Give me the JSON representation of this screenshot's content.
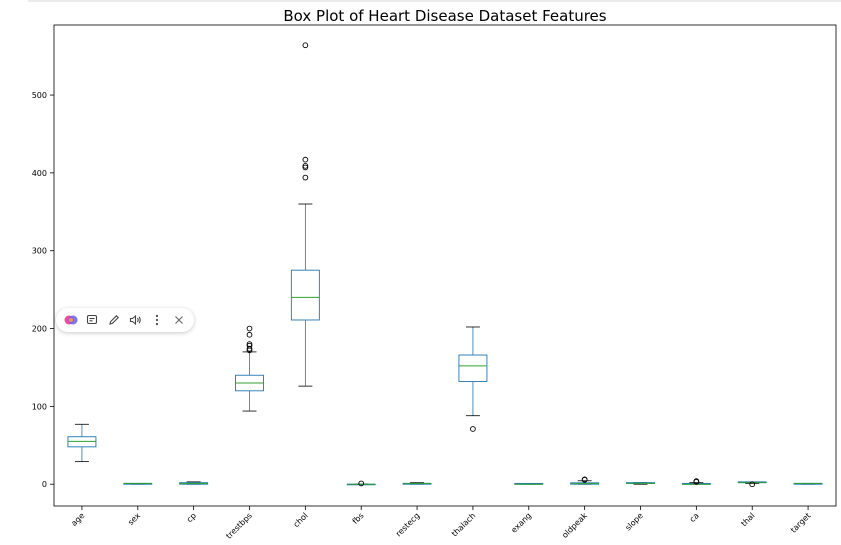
{
  "chart_data": {
    "type": "box",
    "title": "Box Plot of Heart Disease Dataset Features",
    "xlabel": "",
    "ylabel": "",
    "ylim": [
      -28,
      590
    ],
    "yticks": [
      0,
      100,
      200,
      300,
      400,
      500
    ],
    "grid": false,
    "categories": [
      "age",
      "sex",
      "cp",
      "trestbps",
      "chol",
      "fbs",
      "restecg",
      "thalach",
      "exang",
      "oldpeak",
      "slope",
      "ca",
      "thal",
      "target"
    ],
    "boxes": [
      {
        "q1": 48,
        "median": 55,
        "q3": 61,
        "whisker_low": 29,
        "whisker_high": 77,
        "outliers": []
      },
      {
        "q1": 0,
        "median": 1,
        "q3": 1,
        "whisker_low": 0,
        "whisker_high": 1,
        "outliers": []
      },
      {
        "q1": 0,
        "median": 1,
        "q3": 2,
        "whisker_low": 0,
        "whisker_high": 3,
        "outliers": []
      },
      {
        "q1": 120,
        "median": 130,
        "q3": 140,
        "whisker_low": 94,
        "whisker_high": 170,
        "outliers": [
          172,
          174,
          178,
          180,
          192,
          200
        ]
      },
      {
        "q1": 211,
        "median": 240,
        "q3": 275,
        "whisker_low": 126,
        "whisker_high": 360,
        "outliers": [
          394,
          407,
          409,
          417,
          564
        ]
      },
      {
        "q1": 0,
        "median": 0,
        "q3": 0,
        "whisker_low": 0,
        "whisker_high": 0,
        "outliers": [
          1
        ]
      },
      {
        "q1": 0,
        "median": 1,
        "q3": 1,
        "whisker_low": 0,
        "whisker_high": 2,
        "outliers": []
      },
      {
        "q1": 132,
        "median": 152,
        "q3": 166,
        "whisker_low": 88,
        "whisker_high": 202,
        "outliers": [
          71
        ]
      },
      {
        "q1": 0,
        "median": 0,
        "q3": 1,
        "whisker_low": 0,
        "whisker_high": 1,
        "outliers": []
      },
      {
        "q1": 0,
        "median": 0.8,
        "q3": 1.8,
        "whisker_low": 0,
        "whisker_high": 4.4,
        "outliers": [
          5.6,
          6.2
        ]
      },
      {
        "q1": 1,
        "median": 1,
        "q3": 2,
        "whisker_low": 0,
        "whisker_high": 2,
        "outliers": []
      },
      {
        "q1": 0,
        "median": 0,
        "q3": 1,
        "whisker_low": 0,
        "whisker_high": 2,
        "outliers": [
          3,
          4
        ]
      },
      {
        "q1": 2,
        "median": 2,
        "q3": 3,
        "whisker_low": 1,
        "whisker_high": 3,
        "outliers": [
          0
        ]
      },
      {
        "q1": 0,
        "median": 1,
        "q3": 1,
        "whisker_low": 0,
        "whisker_high": 1,
        "outliers": []
      }
    ],
    "colors": {
      "box": "#1f77b4",
      "median": "#2ca02c",
      "outlier": "#000000"
    }
  },
  "toolbar": {
    "icons": [
      "ai-assistant-icon",
      "note-icon",
      "pencil-icon",
      "speaker-icon",
      "more-icon",
      "close-icon"
    ]
  }
}
